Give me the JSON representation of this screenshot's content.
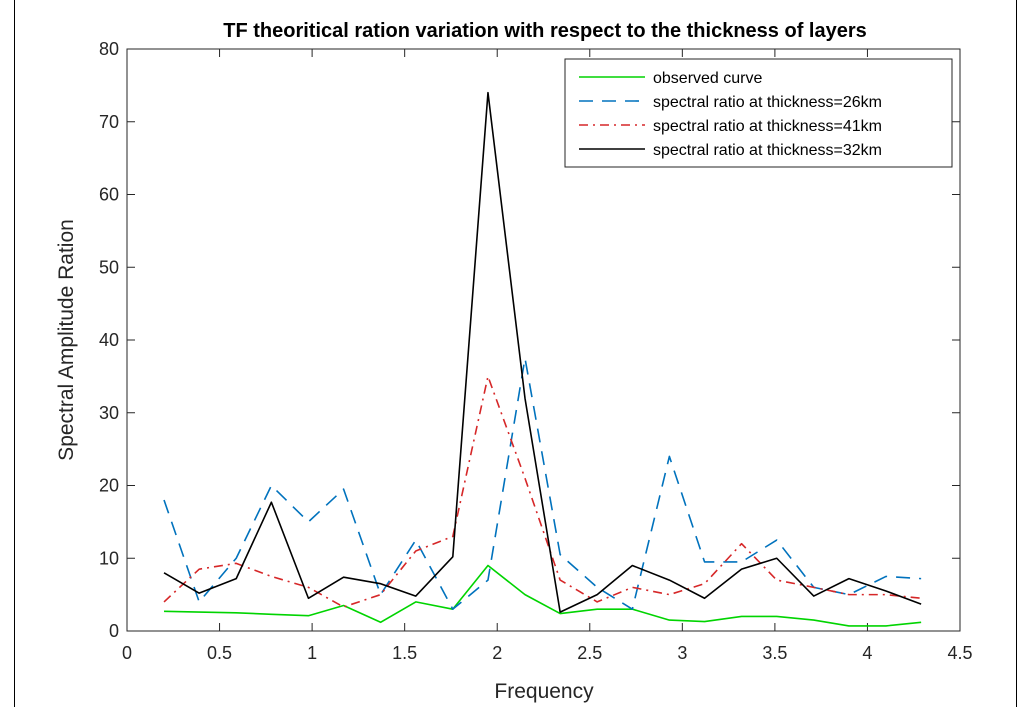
{
  "chart_data": {
    "type": "line",
    "title": "TF theoritical ration variation with respect to the thickness of layers",
    "xlabel": "Frequency",
    "ylabel": "Spectral Amplitude Ration",
    "xlim": [
      0,
      4.5
    ],
    "ylim": [
      0,
      80
    ],
    "xticks": [
      0,
      0.5,
      1,
      1.5,
      2,
      2.5,
      3,
      3.5,
      4,
      4.5
    ],
    "yticks": [
      0,
      10,
      20,
      30,
      40,
      50,
      60,
      70,
      80
    ],
    "xtick_labels": [
      "0",
      "0.5",
      "1",
      "1.5",
      "2",
      "2.5",
      "3",
      "3.5",
      "4",
      "4.5"
    ],
    "ytick_labels": [
      "0",
      "10",
      "20",
      "30",
      "40",
      "50",
      "60",
      "70",
      "80"
    ],
    "grid": false,
    "legend_position": "top-right",
    "x": [
      0.2,
      0.39,
      0.59,
      0.78,
      0.98,
      1.17,
      1.37,
      1.56,
      1.76,
      1.95,
      2.15,
      2.34,
      2.54,
      2.73,
      2.93,
      3.12,
      3.32,
      3.51,
      3.71,
      3.9,
      4.1,
      4.29
    ],
    "series": [
      {
        "name": "observed curve",
        "color": "#00d400",
        "dash": "solid",
        "values": [
          2.7,
          2.6,
          2.5,
          2.3,
          2.1,
          3.5,
          1.2,
          4.0,
          3.0,
          9.0,
          5.0,
          2.4,
          3.0,
          3.0,
          1.5,
          1.3,
          2.0,
          2.0,
          1.5,
          0.7,
          0.7,
          1.2
        ]
      },
      {
        "name": "spectral ratio at thickness=26km",
        "color": "#0072bd",
        "dash": "long-dash",
        "values": [
          18.0,
          4.0,
          10.0,
          20.0,
          15.0,
          19.5,
          5.0,
          12.5,
          3.0,
          7.0,
          37.5,
          10.5,
          6.0,
          3.0,
          24.0,
          9.5,
          9.5,
          12.5,
          6.0,
          5.0,
          7.5,
          7.2
        ]
      },
      {
        "name": "spectral ratio at thickness=41km",
        "color": "#d62728",
        "dash": "dash-dot",
        "values": [
          4.0,
          8.5,
          9.3,
          7.5,
          6.0,
          3.3,
          5.0,
          11.0,
          13.0,
          35.0,
          21.0,
          7.0,
          4.0,
          6.0,
          5.0,
          6.5,
          12.0,
          7.0,
          6.0,
          5.0,
          5.0,
          4.5
        ]
      },
      {
        "name": "spectral ratio at thickness=32km",
        "color": "#000000",
        "dash": "solid",
        "values": [
          8.0,
          5.2,
          7.2,
          17.7,
          4.5,
          7.4,
          6.5,
          4.8,
          10.2,
          74.0,
          32.0,
          2.6,
          5.0,
          9.0,
          7.0,
          4.5,
          8.5,
          10.0,
          4.8,
          7.2,
          5.5,
          3.7
        ]
      }
    ]
  }
}
